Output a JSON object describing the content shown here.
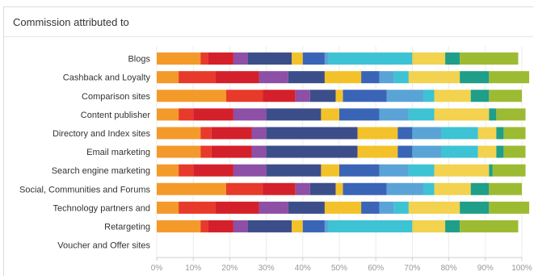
{
  "panel": {
    "title": "Commission attributed to"
  },
  "colors": [
    "#f39a2b",
    "#e83a2a",
    "#d4202a",
    "#8e4fa6",
    "#3c4e8a",
    "#f3c22a",
    "#3a64b6",
    "#5aa3d6",
    "#3dc3d3",
    "#f2d24e",
    "#1f9e89",
    "#9dbb32"
  ],
  "chart_data": {
    "type": "bar",
    "orientation": "horizontal",
    "stacked": true,
    "categories": [
      "Blogs",
      "Cashback and Loyalty",
      "Comparison sites",
      "Content publisher",
      "Directory and Index sites",
      "Email marketing",
      "Search engine marketing",
      "Social, Communities and Forums",
      "Technology partners and",
      "Retargeting",
      "Voucher and Offer sites"
    ],
    "segments": [
      [
        12,
        2,
        7,
        4,
        12,
        3,
        6,
        1,
        23,
        9,
        4,
        16
      ],
      [
        6,
        10,
        12,
        8,
        10,
        10,
        5,
        4,
        4,
        14,
        8,
        11
      ],
      [
        19,
        10,
        9,
        4,
        7,
        2,
        12,
        10,
        3,
        10,
        5,
        9
      ],
      [
        6,
        4,
        11,
        9,
        15,
        5,
        11,
        8,
        7,
        15,
        2,
        8
      ],
      [
        12,
        3,
        11,
        4,
        25,
        11,
        4,
        8,
        10,
        5,
        2,
        6
      ],
      [
        12,
        3,
        11,
        4,
        25,
        11,
        4,
        8,
        10,
        5,
        2,
        6
      ],
      [
        6,
        4,
        11,
        9,
        15,
        5,
        11,
        8,
        7,
        15,
        1,
        9
      ],
      [
        19,
        10,
        9,
        4,
        7,
        2,
        12,
        10,
        3,
        10,
        5,
        9
      ],
      [
        6,
        10,
        12,
        8,
        10,
        10,
        5,
        4,
        4,
        14,
        8,
        11
      ],
      [
        12,
        2,
        7,
        4,
        12,
        3,
        6,
        1,
        23,
        9,
        4,
        16
      ],
      []
    ],
    "xticks": [
      "0%",
      "10%",
      "20%",
      "30%",
      "40%",
      "50%",
      "60%",
      "70%",
      "80%",
      "90%",
      "100%"
    ],
    "xlim": [
      0,
      100
    ],
    "grid": true
  }
}
